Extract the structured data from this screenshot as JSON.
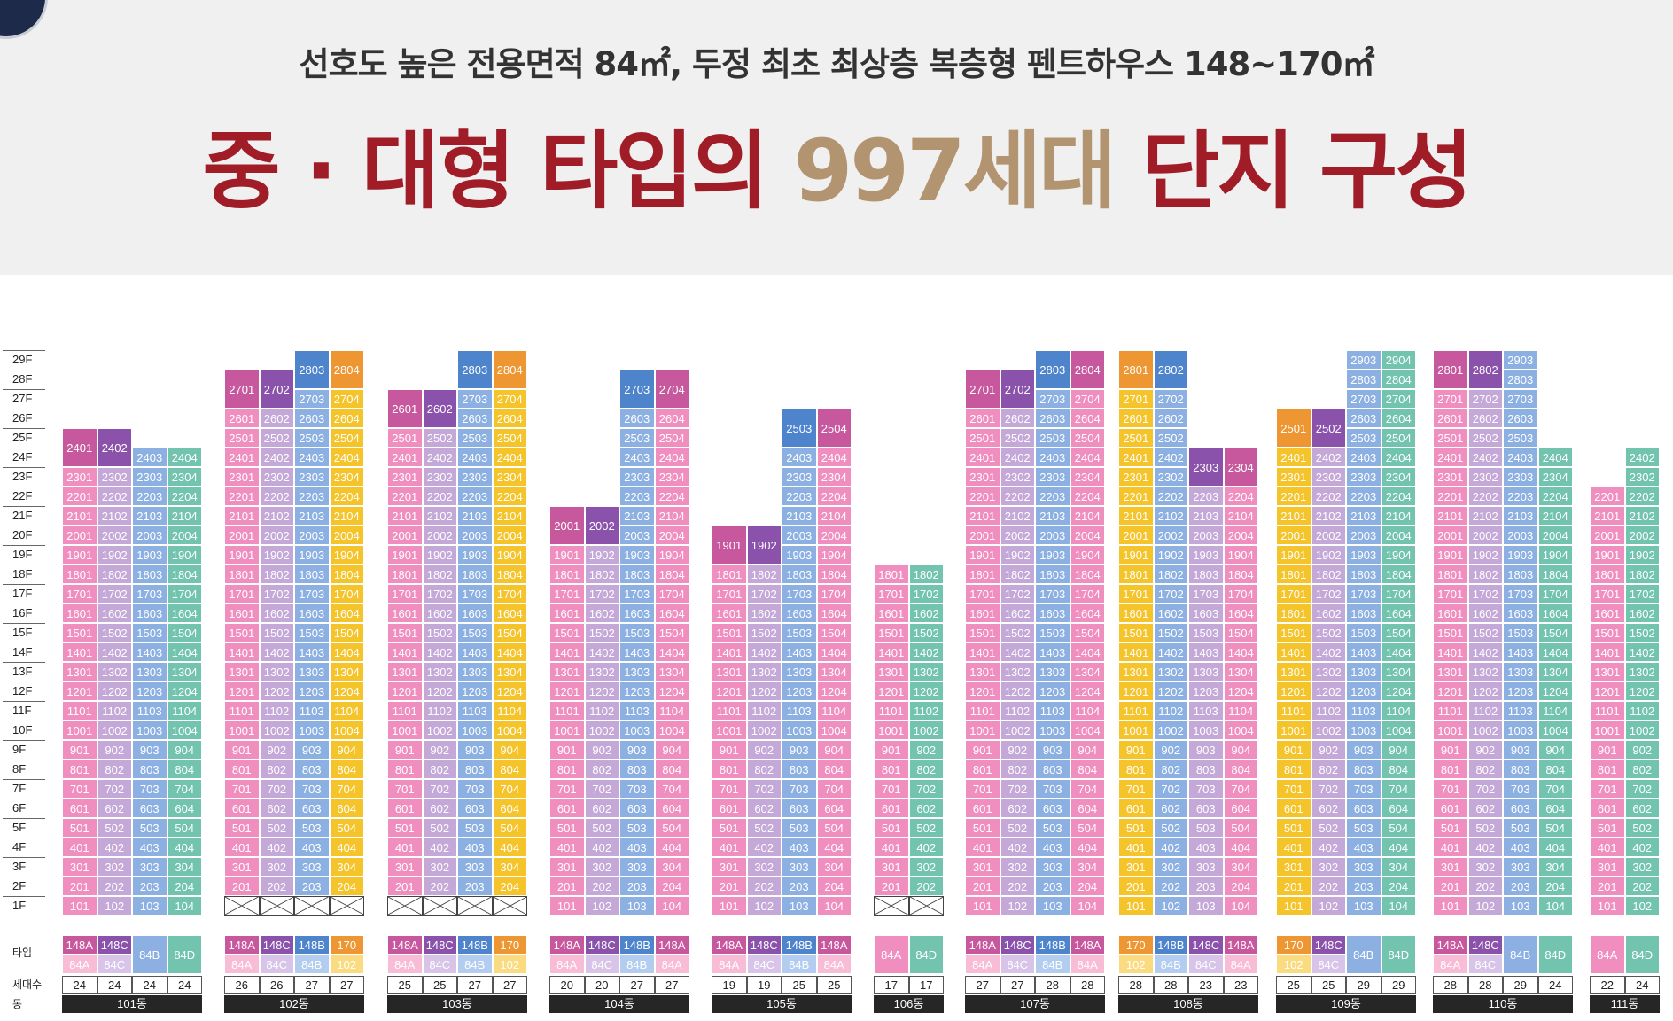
{
  "header": {
    "subtitle": "선호도 높은 전용면적 84㎡, 두정 최초 최상층 복층형 펜트하우스 148~170㎡",
    "title_part1": "중 · 대형 타입의 ",
    "title_highlight": "997세대",
    "title_part2": " 단지 구성"
  },
  "floors": [
    "29F",
    "28F",
    "27F",
    "26F",
    "25F",
    "24F",
    "23F",
    "22F",
    "21F",
    "20F",
    "19F",
    "18F",
    "17F",
    "16F",
    "15F",
    "14F",
    "13F",
    "12F",
    "11F",
    "10F",
    "9F",
    "8F",
    "7F",
    "6F",
    "5F",
    "4F",
    "3F",
    "2F",
    "1F"
  ],
  "row_labels": {
    "type": "타입",
    "households": "세대수",
    "building": "동"
  },
  "colors": {
    "pink": "#f08fbf",
    "lav": "#c4a8d8",
    "blue": "#8cb0e2",
    "teal": "#72c4ae",
    "yellow": "#f5c32a",
    "dpink": "#c8589e",
    "dpurple": "#8a52aa",
    "dblue": "#4d84cc",
    "orange": "#ee9632",
    "lpink": "#f9bcd6",
    "lpurple": "#d8c4e8",
    "lblue": "#b2cdef",
    "lteal": "#a6dccd",
    "lyellow": "#fadb80",
    "lorange": "#f5bd7a",
    "brown": "#b39470",
    "red": "#a01d28"
  },
  "buildings": [
    {
      "name": "101동",
      "cols": [
        {
          "top": 24,
          "empty1": false,
          "pent": [
            24
          ],
          "pc": "dpink",
          "c": "pink",
          "types": [
            "148A",
            "84A"
          ],
          "tc": [
            "dpink",
            "lpink"
          ],
          "count": "24"
        },
        {
          "top": 24,
          "empty1": false,
          "pent": [
            24
          ],
          "pc": "dpurple",
          "c": "lav",
          "types": [
            "148C",
            "84C"
          ],
          "tc": [
            "dpurple",
            "lpurple"
          ],
          "count": "24"
        },
        {
          "top": 24,
          "empty1": false,
          "pent": [],
          "pc": "",
          "c": "blue",
          "types": [
            "84B"
          ],
          "tc": [
            "blue"
          ],
          "count": "24"
        },
        {
          "top": 24,
          "empty1": false,
          "pent": [],
          "pc": "",
          "c": "teal",
          "types": [
            "84D"
          ],
          "tc": [
            "teal"
          ],
          "count": "24"
        }
      ]
    },
    {
      "name": "102동",
      "cols": [
        {
          "top": 27,
          "empty1": false,
          "pent": [
            27
          ],
          "pc": "dpink",
          "c": "pink",
          "types": [
            "148A",
            "84A"
          ],
          "tc": [
            "dpink",
            "lpink"
          ],
          "count": "26"
        },
        {
          "top": 27,
          "empty1": false,
          "pent": [
            27
          ],
          "pc": "dpurple",
          "c": "lav",
          "types": [
            "148C",
            "84C"
          ],
          "tc": [
            "dpurple",
            "lpurple"
          ],
          "count": "26"
        },
        {
          "top": 28,
          "empty1": false,
          "pent": [
            28
          ],
          "pc": "dblue",
          "c": "blue",
          "types": [
            "148B",
            "84B"
          ],
          "tc": [
            "dblue",
            "lblue"
          ],
          "count": "27"
        },
        {
          "top": 28,
          "empty1": false,
          "pent": [
            28
          ],
          "pc": "orange",
          "c": "yellow",
          "types": [
            "170",
            "102"
          ],
          "tc": [
            "orange",
            "lyellow"
          ],
          "count": "27"
        }
      ]
    },
    {
      "name": "103동",
      "cols": [
        {
          "top": 26,
          "empty1": false,
          "pent": [
            26
          ],
          "pc": "dpink",
          "c": "pink",
          "types": [
            "148A",
            "84A"
          ],
          "tc": [
            "dpink",
            "lpink"
          ],
          "count": "25"
        },
        {
          "top": 26,
          "empty1": false,
          "pent": [
            26
          ],
          "pc": "dpurple",
          "c": "lav",
          "types": [
            "148C",
            "84C"
          ],
          "tc": [
            "dpurple",
            "lpurple"
          ],
          "count": "25"
        },
        {
          "top": 28,
          "empty1": false,
          "pent": [
            28
          ],
          "pc": "dblue",
          "c": "blue",
          "types": [
            "148B",
            "84B"
          ],
          "tc": [
            "dblue",
            "lblue"
          ],
          "count": "27"
        },
        {
          "top": 28,
          "empty1": false,
          "pent": [
            28
          ],
          "pc": "orange",
          "c": "yellow",
          "types": [
            "170",
            "102"
          ],
          "tc": [
            "orange",
            "lyellow"
          ],
          "count": "27"
        }
      ]
    },
    {
      "name": "104동",
      "cols": [
        {
          "top": 20,
          "empty1": false,
          "pent": [
            20
          ],
          "pc": "dpink",
          "c": "pink",
          "types": [
            "148A",
            "84A"
          ],
          "tc": [
            "dpink",
            "lpink"
          ],
          "count": "20"
        },
        {
          "top": 20,
          "empty1": false,
          "pent": [
            20
          ],
          "pc": "dpurple",
          "c": "lav",
          "types": [
            "148C",
            "84C"
          ],
          "tc": [
            "dpurple",
            "lpurple"
          ],
          "count": "20"
        },
        {
          "top": 27,
          "empty1": false,
          "pent": [
            27
          ],
          "pc": "dblue",
          "c": "blue",
          "types": [
            "148B",
            "84B"
          ],
          "tc": [
            "dblue",
            "lblue"
          ],
          "count": "27"
        },
        {
          "top": 27,
          "empty1": false,
          "pent": [
            27
          ],
          "pc": "dpink",
          "c": "pink",
          "types": [
            "148A",
            "84A"
          ],
          "tc": [
            "dpink",
            "lpink"
          ],
          "count": "27"
        }
      ]
    },
    {
      "name": "105동",
      "cols": [
        {
          "top": 19,
          "empty1": false,
          "pent": [
            19
          ],
          "pc": "dpink",
          "c": "pink",
          "types": [
            "148A",
            "84A"
          ],
          "tc": [
            "dpink",
            "lpink"
          ],
          "count": "19"
        },
        {
          "top": 19,
          "empty1": false,
          "pent": [
            19
          ],
          "pc": "dpurple",
          "c": "lav",
          "types": [
            "148C",
            "84C"
          ],
          "tc": [
            "dpurple",
            "lpurple"
          ],
          "count": "19"
        },
        {
          "top": 25,
          "empty1": false,
          "pent": [
            25
          ],
          "pc": "dblue",
          "c": "blue",
          "types": [
            "148B",
            "84B"
          ],
          "tc": [
            "dblue",
            "lblue"
          ],
          "count": "25"
        },
        {
          "top": 25,
          "empty1": false,
          "pent": [
            25
          ],
          "pc": "dpink",
          "c": "pink",
          "types": [
            "148A",
            "84A"
          ],
          "tc": [
            "dpink",
            "lpink"
          ],
          "count": "25"
        }
      ]
    },
    {
      "name": "106동",
      "cols": [
        {
          "top": 18,
          "empty1": false,
          "pent": [],
          "pc": "",
          "c": "pink",
          "types": [
            "84A"
          ],
          "tc": [
            "pink"
          ],
          "count": "17"
        },
        {
          "top": 18,
          "empty1": false,
          "pent": [],
          "pc": "",
          "c": "teal",
          "types": [
            "84D"
          ],
          "tc": [
            "teal"
          ],
          "count": "17"
        }
      ]
    },
    {
      "name": "107동",
      "cols": [
        {
          "top": 27,
          "empty1": false,
          "pent": [
            27
          ],
          "pc": "dpink",
          "c": "pink",
          "types": [
            "148A",
            "84A"
          ],
          "tc": [
            "dpink",
            "lpink"
          ],
          "count": "27"
        },
        {
          "top": 27,
          "empty1": false,
          "pent": [
            27
          ],
          "pc": "dpurple",
          "c": "lav",
          "types": [
            "148C",
            "84C"
          ],
          "tc": [
            "dpurple",
            "lpurple"
          ],
          "count": "27"
        },
        {
          "top": 28,
          "empty1": false,
          "pent": [
            28
          ],
          "pc": "dblue",
          "c": "blue",
          "types": [
            "148B",
            "84B"
          ],
          "tc": [
            "dblue",
            "lblue"
          ],
          "count": "28"
        },
        {
          "top": 28,
          "empty1": false,
          "pent": [
            28
          ],
          "pc": "dpink",
          "c": "pink",
          "types": [
            "148A",
            "84A"
          ],
          "tc": [
            "dpink",
            "lpink"
          ],
          "count": "28"
        }
      ]
    },
    {
      "name": "108동",
      "cols": [
        {
          "top": 28,
          "empty1": false,
          "pent": [
            28
          ],
          "pc": "orange",
          "c": "yellow",
          "types": [
            "170",
            "102"
          ],
          "tc": [
            "orange",
            "lyellow"
          ],
          "count": "28"
        },
        {
          "top": 28,
          "empty1": false,
          "pent": [
            28
          ],
          "pc": "dblue",
          "c": "blue",
          "types": [
            "148B",
            "84B"
          ],
          "tc": [
            "dblue",
            "lblue"
          ],
          "count": "28"
        },
        {
          "top": 23,
          "empty1": false,
          "pent": [
            23
          ],
          "pc": "dpurple",
          "c": "lav",
          "types": [
            "148C",
            "84C"
          ],
          "tc": [
            "dpurple",
            "lpurple"
          ],
          "count": "23"
        },
        {
          "top": 23,
          "empty1": false,
          "pent": [
            23
          ],
          "pc": "dpink",
          "c": "pink",
          "types": [
            "148A",
            "84A"
          ],
          "tc": [
            "dpink",
            "lpink"
          ],
          "count": "23"
        }
      ]
    },
    {
      "name": "109동",
      "cols": [
        {
          "top": 25,
          "empty1": false,
          "pent": [
            25
          ],
          "pc": "orange",
          "c": "yellow",
          "types": [
            "170",
            "102"
          ],
          "tc": [
            "orange",
            "lyellow"
          ],
          "count": "25"
        },
        {
          "top": 25,
          "empty1": false,
          "pent": [
            25
          ],
          "pc": "dpurple",
          "c": "lav",
          "types": [
            "148C",
            "84C"
          ],
          "tc": [
            "dpurple",
            "lpurple"
          ],
          "count": "25"
        },
        {
          "top": 29,
          "empty1": false,
          "pent": [],
          "pc": "",
          "c": "blue",
          "types": [
            "84B"
          ],
          "tc": [
            "blue"
          ],
          "count": "29"
        },
        {
          "top": 29,
          "empty1": false,
          "pent": [],
          "pc": "",
          "c": "teal",
          "types": [
            "84D"
          ],
          "tc": [
            "teal"
          ],
          "count": "29"
        }
      ]
    },
    {
      "name": "110동",
      "cols": [
        {
          "top": 28,
          "empty1": false,
          "pent": [
            28
          ],
          "pc": "dpink",
          "c": "pink",
          "types": [
            "148A",
            "84A"
          ],
          "tc": [
            "dpink",
            "lpink"
          ],
          "count": "28"
        },
        {
          "top": 28,
          "empty1": false,
          "pent": [
            28
          ],
          "pc": "dpurple",
          "c": "lav",
          "types": [
            "148C",
            "84C"
          ],
          "tc": [
            "dpurple",
            "lpurple"
          ],
          "count": "28"
        },
        {
          "top": 29,
          "empty1": false,
          "pent": [],
          "pc": "",
          "c": "blue",
          "types": [
            "84B"
          ],
          "tc": [
            "blue"
          ],
          "count": "29"
        },
        {
          "top": 24,
          "empty1": false,
          "pent": [],
          "pc": "",
          "c": "teal",
          "types": [
            "84D"
          ],
          "tc": [
            "teal"
          ],
          "count": "24"
        }
      ]
    },
    {
      "name": "111동",
      "cols": [
        {
          "top": 22,
          "empty1": false,
          "pent": [],
          "pc": "",
          "c": "pink",
          "types": [
            "84A"
          ],
          "tc": [
            "pink"
          ],
          "count": "22"
        },
        {
          "top": 24,
          "empty1": false,
          "pent": [],
          "pc": "",
          "c": "teal",
          "types": [
            "84D"
          ],
          "tc": [
            "teal"
          ],
          "count": "24"
        }
      ]
    }
  ],
  "empty_first_floor": [
    "102동",
    "103동",
    "106동"
  ]
}
